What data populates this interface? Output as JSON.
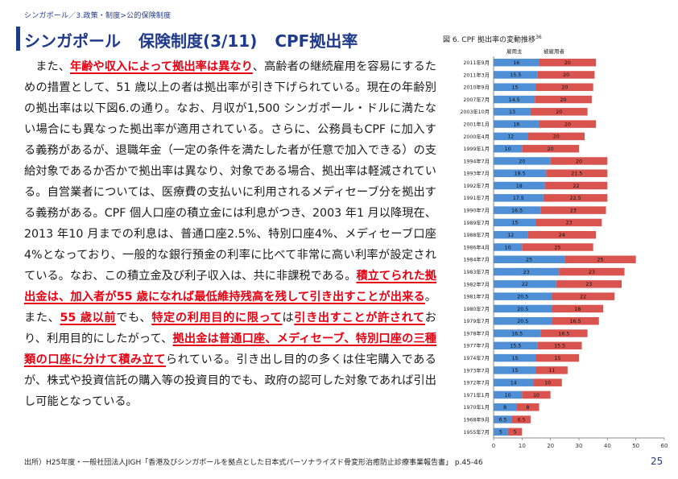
{
  "breadcrumb": "シンガポール／3.政策・制度>公的保険制度",
  "title": {
    "part1": "シンガポール",
    "part2": "保険制度(3/11)",
    "part3": "CPF拠出率"
  },
  "body": {
    "s1": "また、",
    "s2": "年齢や収入によって拠出率は異なり",
    "s3": "、高齢者の継続雇用を容易にするための措置として、51 歳以上の者は拠出率が引き下げられている。現在の年齢別の拠出率は以下図6.の通り。なお、月収が1,500 シンガポール・ドルに満たない場合にも異なった拠出率が適用されている。さらに、公務員もCPF に加入する義務があるが、退職年金（一定の条件を満たした者が任意で加入できる）の支給対象であるか否かで拠出率は異なり、対象である場合、拠出率は軽減されている。自営業者については、医療費の支払いに利用されるメディセーブ分を拠出する義務がある。CPF 個人口座の積立金には利息がつき、2003 年1 月以降現在、2013 年10 月までの利息は、普通口座2.5%、特別口座4%、メディセーブ口座4%となっており、一般的な銀行預金の利率に比べて非常に高い利率が設定されている。なお、この積立金及び利子収入は、共に非課税である。",
    "s4": "積立てられた拠出金は、加入者が55 歳になれば最低維持残高を残して引き出すことが出来る",
    "s5": "。また、",
    "s6": "55 歳以前",
    "s7": "でも、",
    "s8": "特定の利用目的に限って",
    "s9": "は",
    "s10": "引き出すことが許されて",
    "s11": "おり、利用目的にしたがって、",
    "s12": "拠出金は普通口座、メディセーブ、特別口座の三種類の口座に分けて積み立て",
    "s13": "られている。引き出し目的の多くは住宅購入であるが、株式や投資信託の購入等の投資目的でも、政府の認可した対象であれば引出し可能となっている。"
  },
  "source": "出所）H25年度・一般社団法人JIGH「香港及びシンガポールを拠点とした日本式パーソナライズド骨変形治癒防止診療事業報告書」 p.45-46",
  "page_number": "25",
  "chart_title": "図 6.  CPF 拠出率の変動推移",
  "chart_title_sup": "36",
  "chart_data": {
    "type": "bar",
    "orientation": "horizontal",
    "stacked": true,
    "categories": [
      "2011年9月",
      "2011年3月",
      "2010年9月",
      "2007年7月",
      "2003年10月",
      "2001年1月",
      "2000年4月",
      "1999年1月",
      "1994年7月",
      "1993年7月",
      "1992年7月",
      "1991年7月",
      "1990年7月",
      "1989年7月",
      "1988年7月",
      "1986年4月",
      "1984年7月",
      "1983年7月",
      "1982年7月",
      "1981年7月",
      "1980年7月",
      "1979年7月",
      "1978年7月",
      "1977年7月",
      "1974年7月",
      "1973年7月",
      "1972年7月",
      "1971年1月",
      "1970年1月",
      "1968年9月",
      "1955年7月"
    ],
    "series": [
      {
        "name": "雇用主",
        "color": "#4f8fd6",
        "values": [
          16,
          15.5,
          15,
          14.5,
          13,
          16,
          12,
          10,
          20,
          18.5,
          18,
          17.5,
          16.5,
          15,
          12,
          10,
          25,
          23,
          22,
          20.5,
          20.5,
          20.5,
          16.5,
          15.5,
          15,
          15,
          14,
          10,
          8,
          6.5,
          5
        ]
      },
      {
        "name": "被雇用者",
        "color": "#d9534f",
        "values": [
          20,
          20,
          20,
          20,
          20,
          20,
          20,
          20,
          20,
          21.5,
          22,
          22.5,
          23,
          23,
          24,
          25,
          25,
          23,
          23,
          22,
          18,
          16.5,
          16.5,
          15.5,
          15,
          11,
          10,
          10,
          8,
          6.5,
          5
        ]
      }
    ],
    "xlim": [
      0,
      60
    ],
    "xticks": [
      0,
      10,
      20,
      30,
      40,
      50,
      60
    ],
    "grid": false,
    "legend": "top"
  }
}
